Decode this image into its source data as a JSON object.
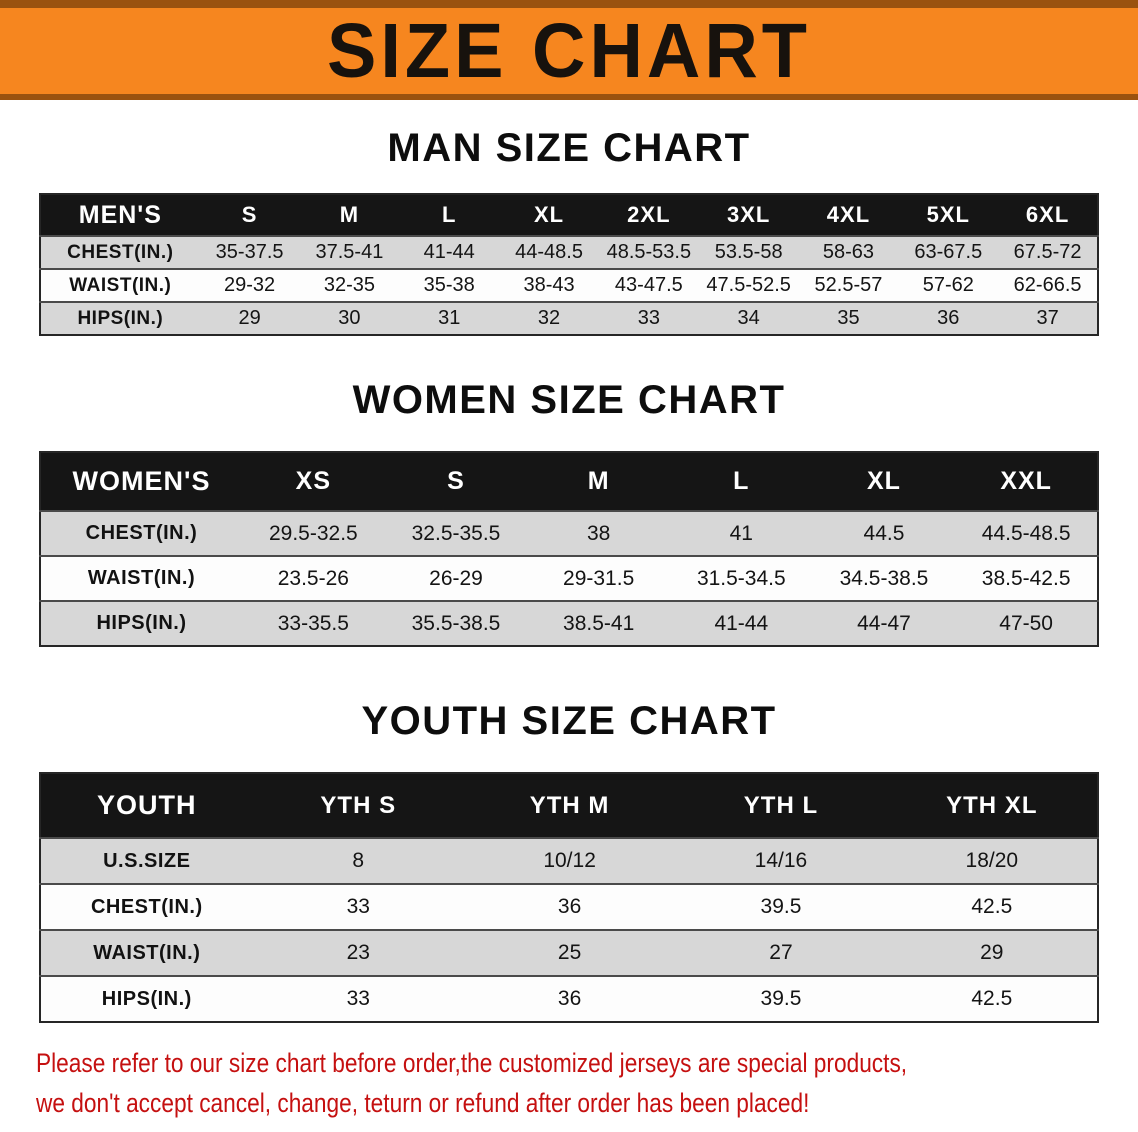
{
  "banner": {
    "title": "SIZE CHART"
  },
  "sections": [
    {
      "id": "men",
      "heading": "MAN SIZE CHART",
      "table": {
        "header": [
          "MEN'S",
          "S",
          "M",
          "L",
          "XL",
          "2XL",
          "3XL",
          "4XL",
          "5XL",
          "6XL"
        ],
        "rows": [
          [
            "CHEST(IN.)",
            "35-37.5",
            "37.5-41",
            "41-44",
            "44-48.5",
            "48.5-53.5",
            "53.5-58",
            "58-63",
            "63-67.5",
            "67.5-72"
          ],
          [
            "WAIST(IN.)",
            "29-32",
            "32-35",
            "35-38",
            "38-43",
            "43-47.5",
            "47.5-52.5",
            "52.5-57",
            "57-62",
            "62-66.5"
          ],
          [
            "HIPS(IN.)",
            "29",
            "30",
            "31",
            "32",
            "33",
            "34",
            "35",
            "36",
            "37"
          ]
        ]
      }
    },
    {
      "id": "women",
      "heading": "WOMEN SIZE CHART",
      "table": {
        "header": [
          "WOMEN'S",
          "XS",
          "S",
          "M",
          "L",
          "XL",
          "XXL"
        ],
        "rows": [
          [
            "CHEST(IN.)",
            "29.5-32.5",
            "32.5-35.5",
            "38",
            "41",
            "44.5",
            "44.5-48.5"
          ],
          [
            "WAIST(IN.)",
            "23.5-26",
            "26-29",
            "29-31.5",
            "31.5-34.5",
            "34.5-38.5",
            "38.5-42.5"
          ],
          [
            "HIPS(IN.)",
            "33-35.5",
            "35.5-38.5",
            "38.5-41",
            "41-44",
            "44-47",
            "47-50"
          ]
        ]
      }
    },
    {
      "id": "youth",
      "heading": "YOUTH SIZE CHART",
      "table": {
        "header": [
          "YOUTH",
          "YTH S",
          "YTH M",
          "YTH L",
          "YTH XL"
        ],
        "rows": [
          [
            "U.S.SIZE",
            "8",
            "10/12",
            "14/16",
            "18/20"
          ],
          [
            "CHEST(IN.)",
            "33",
            "36",
            "39.5",
            "42.5"
          ],
          [
            "WAIST(IN.)",
            "23",
            "25",
            "27",
            "29"
          ],
          [
            "HIPS(IN.)",
            "33",
            "36",
            "39.5",
            "42.5"
          ]
        ]
      }
    }
  ],
  "footer": {
    "lines": [
      "Please refer to our size chart before order,the customized jerseys are special products,",
      "we don't accept cancel, change, teturn or refund after order has been placed!"
    ]
  },
  "colors": {
    "banner_orange": "#f6861f",
    "banner_edge": "#9a520f",
    "header_black": "#151515",
    "row_shade": "#d7d7d7",
    "disclaimer_red": "#c51010"
  }
}
